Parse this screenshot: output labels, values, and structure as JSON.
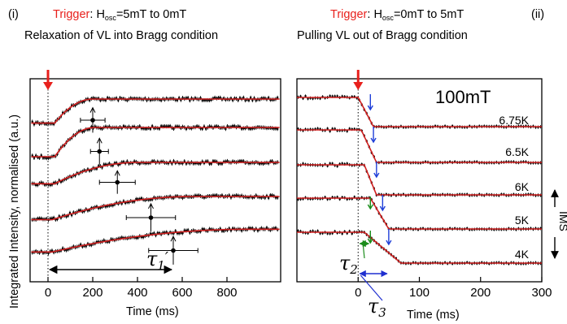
{
  "panel_left": {
    "roman": "(i)",
    "trigger_word": "Trigger",
    "trigger_rest": ": H",
    "trigger_sub": "osc",
    "trigger_tail": "=5mT to 0mT",
    "subtitle": "Relaxation of VL into Bragg condition",
    "tau_label": "τ",
    "tau_sub": "1",
    "tau_prime": "′"
  },
  "panel_right": {
    "roman": "(ii)",
    "trigger_word": "Trigger",
    "trigger_rest": ": H",
    "trigger_sub": "osc",
    "trigger_tail": "=0mT to 5mT",
    "subtitle": "Pulling VL out of Bragg condition",
    "field_label": "100mT",
    "tau2_label": "τ",
    "tau2_sub": "2",
    "tau3_label": "τ",
    "tau3_sub": "3",
    "side_label": "IMS"
  },
  "colors": {
    "trigger": "#e8201c",
    "fit": "#d22020",
    "tau1": "#000000",
    "tau2": "#1a8c1a",
    "tau3": "#1f2fd0",
    "marker": "#1f3fd8"
  },
  "chart_data": [
    {
      "type": "line",
      "panel": "(i)",
      "xlabel": "Time (ms)",
      "ylabel": "Integrated Intensity, normalised (a.u.)",
      "xlim": [
        -80,
        1040
      ],
      "xticks": [
        0,
        200,
        400,
        600,
        800
      ],
      "trigger_time": 0,
      "series": [
        {
          "rise_start": 30,
          "rise_end": 200,
          "pre_level": 0.22,
          "post_level": 1.0,
          "marker": {
            "x": 200,
            "y": 0.5,
            "xerr": 55,
            "yerr": 0.45
          }
        },
        {
          "rise_start": 30,
          "rise_end": 210,
          "pre_level": 0.2,
          "post_level": 1.0,
          "marker": {
            "x": 230,
            "y": 0.45,
            "xerr": 40,
            "yerr": 0.4
          }
        },
        {
          "rise_start": 30,
          "rise_end": 400,
          "pre_level": 0.25,
          "post_level": 1.0,
          "marker": {
            "x": 310,
            "y": 0.45,
            "xerr": 80,
            "yerr": 0.45
          }
        },
        {
          "rise_start": 20,
          "rise_end": 650,
          "pre_level": 0.25,
          "post_level": 1.0,
          "marker": {
            "x": 460,
            "y": 0.15,
            "xerr": 110,
            "yerr": 0.5
          }
        },
        {
          "rise_start": 20,
          "rise_end": 900,
          "pre_level": 0.25,
          "post_level": 1.05,
          "marker": {
            "x": 560,
            "y": 0.0,
            "xerr": 110,
            "yerr": 0.55
          }
        }
      ],
      "tau1_prime_ms": 560
    },
    {
      "type": "line",
      "panel": "(ii)",
      "xlabel": "Time (ms)",
      "xlim": [
        -100,
        300
      ],
      "xticks": [
        0,
        100,
        200,
        300
      ],
      "xtick_labels": [
        "0",
        "100",
        "200",
        "300"
      ],
      "trigger_time": 0,
      "series": [
        {
          "name": "6.75K",
          "fall_start": 0,
          "fall_end": 25,
          "marker_x": 20
        },
        {
          "name": "6.5K",
          "fall_start": 5,
          "fall_end": 30,
          "marker_x": 25
        },
        {
          "name": "6K",
          "fall_start": 10,
          "fall_end": 30,
          "marker_x": 30
        },
        {
          "name": "5K",
          "fall_start": 20,
          "fall_end": 50,
          "marker_x": 40,
          "tau2_x": 20
        },
        {
          "name": "4K",
          "fall_start": 10,
          "fall_end": 70,
          "marker_x": 50,
          "tau2_x": 20,
          "tau3_x": 50
        }
      ]
    }
  ]
}
